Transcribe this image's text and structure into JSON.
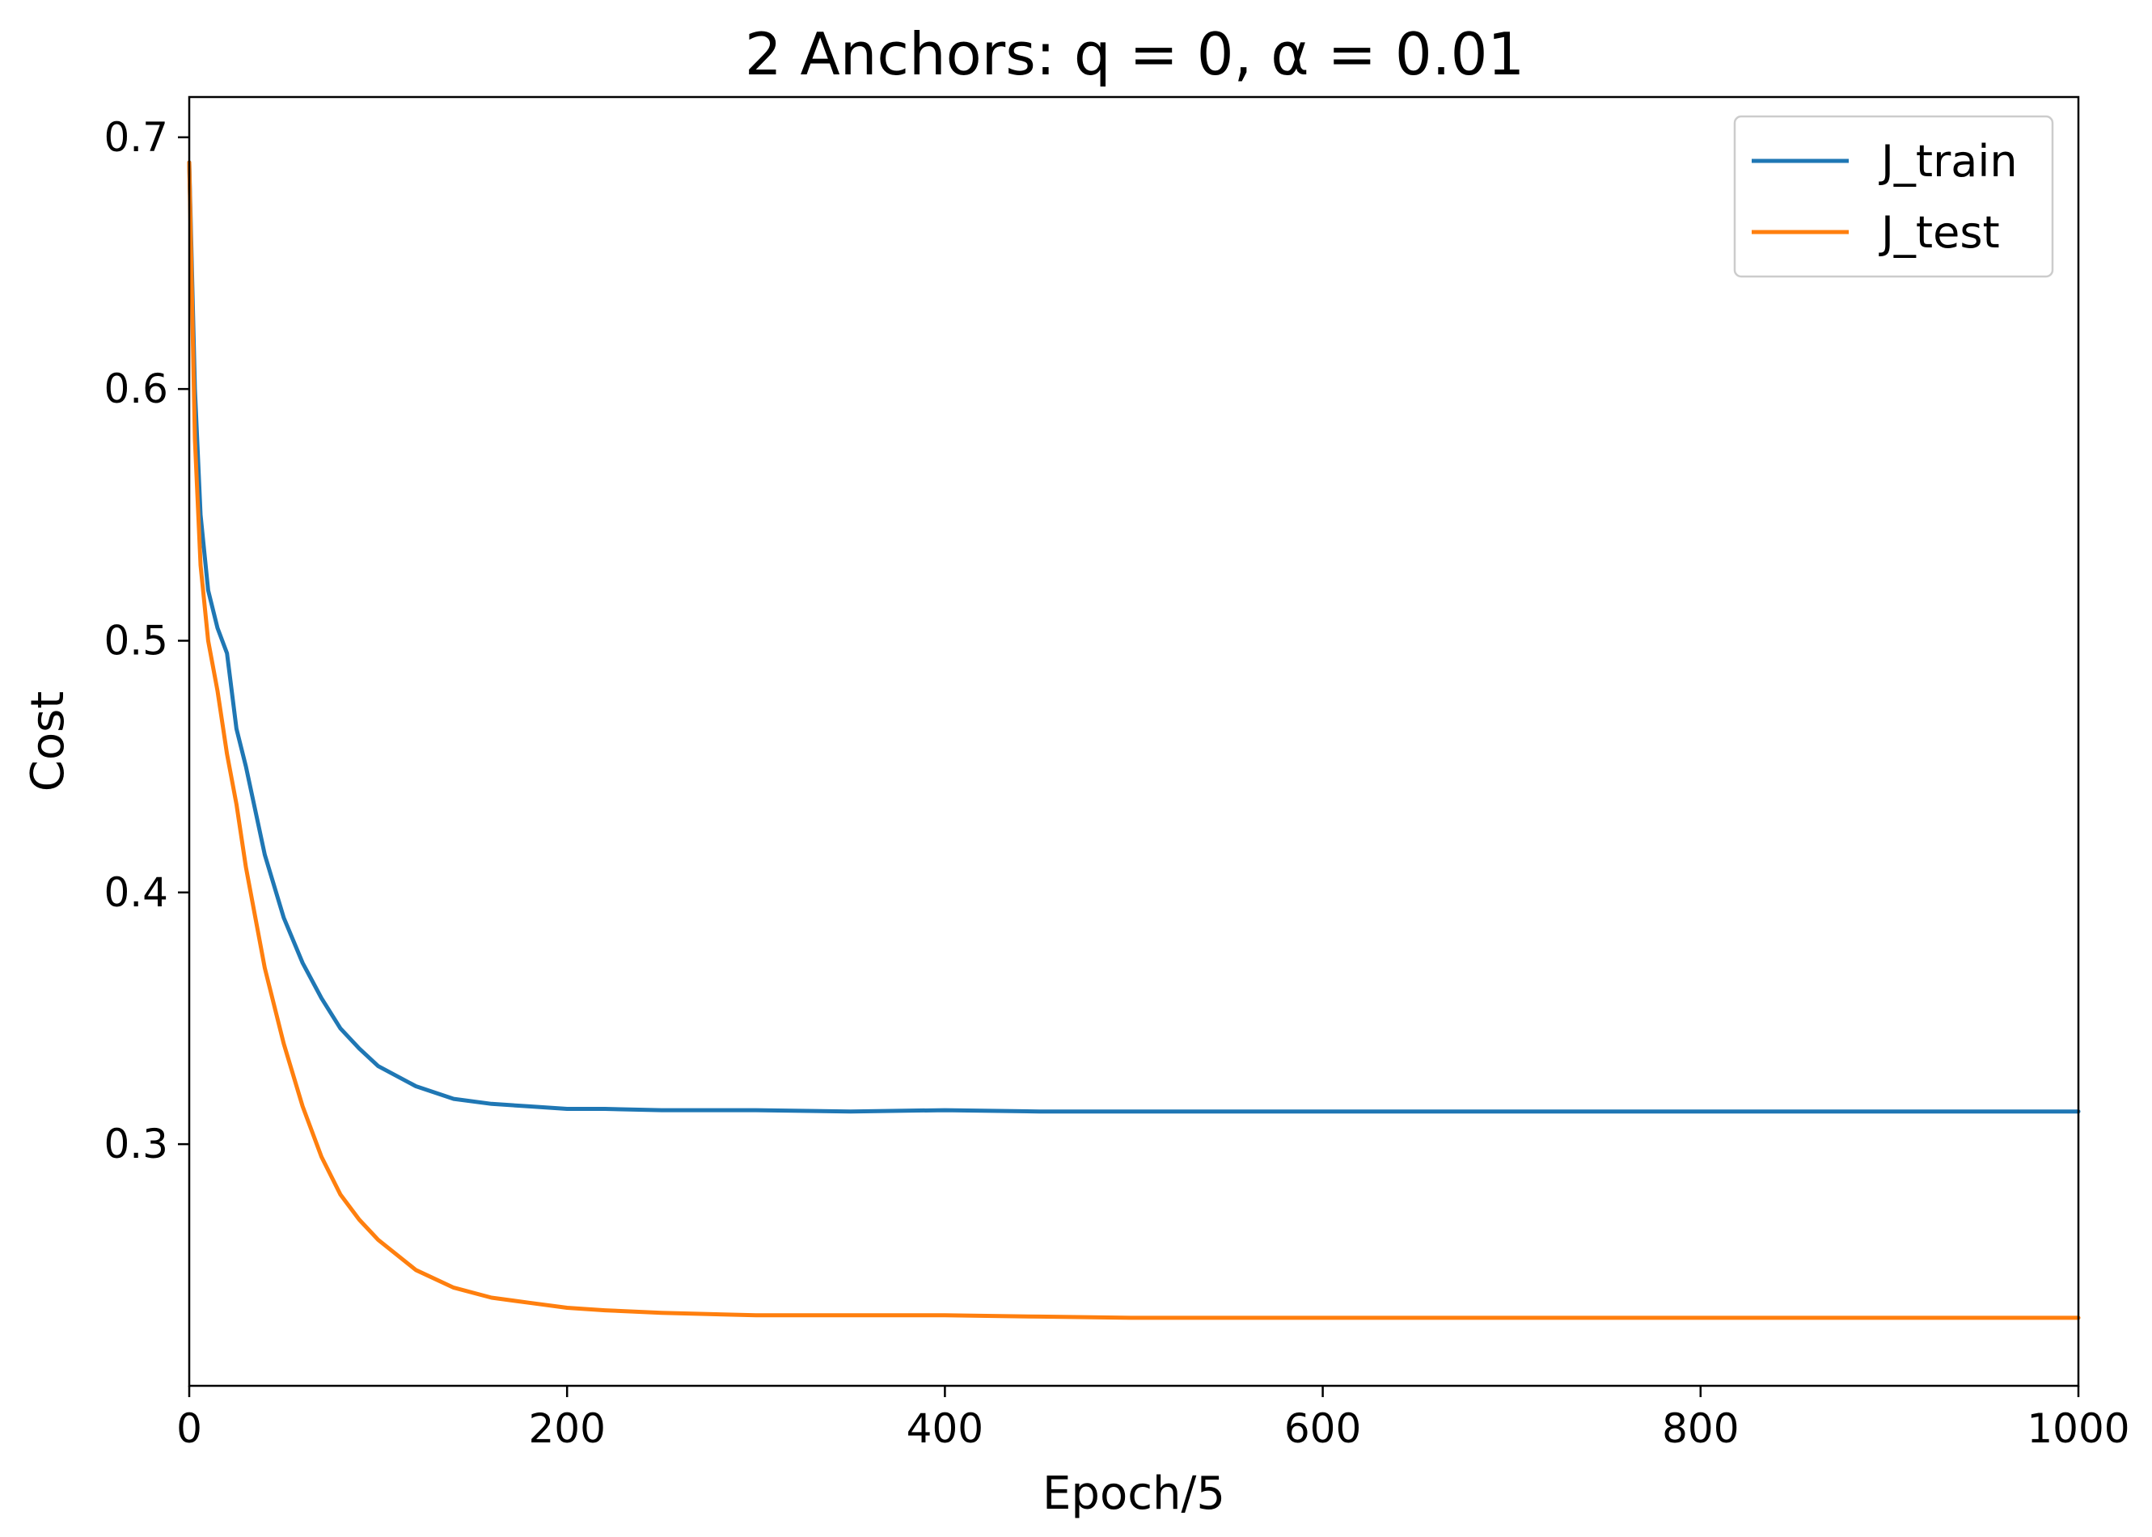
{
  "chart_data": {
    "type": "line",
    "title": "2 Anchors: q = 0, α = 0.01",
    "xlabel": "Epoch/5",
    "ylabel": "Cost",
    "xlim": [
      0,
      1000
    ],
    "ylim": [
      0.204,
      0.716
    ],
    "xticks": [
      0,
      200,
      400,
      600,
      800,
      1000
    ],
    "yticks": [
      0.3,
      0.4,
      0.5,
      0.6,
      0.7
    ],
    "xtick_labels": [
      "0",
      "200",
      "400",
      "600",
      "800",
      "1000"
    ],
    "ytick_labels": [
      "0.3",
      "0.4",
      "0.5",
      "0.6",
      "0.7"
    ],
    "grid": false,
    "legend_position": "upper right",
    "series": [
      {
        "name": "J_train",
        "color": "#1f77b4",
        "x": [
          0,
          3,
          6,
          10,
          15,
          20,
          25,
          30,
          40,
          50,
          60,
          70,
          80,
          90,
          100,
          120,
          140,
          160,
          180,
          200,
          220,
          250,
          300,
          350,
          400,
          450,
          500,
          550,
          600,
          650,
          700,
          750,
          800,
          850,
          900,
          950,
          1000
        ],
        "values": [
          0.69,
          0.6,
          0.55,
          0.52,
          0.505,
          0.495,
          0.465,
          0.45,
          0.415,
          0.39,
          0.372,
          0.358,
          0.346,
          0.338,
          0.331,
          0.323,
          0.318,
          0.316,
          0.315,
          0.314,
          0.314,
          0.3135,
          0.3135,
          0.313,
          0.3135,
          0.313,
          0.313,
          0.313,
          0.313,
          0.313,
          0.313,
          0.313,
          0.313,
          0.313,
          0.313,
          0.313,
          0.313
        ]
      },
      {
        "name": "J_test",
        "color": "#ff7f0e",
        "x": [
          0,
          3,
          6,
          10,
          15,
          20,
          25,
          30,
          40,
          50,
          60,
          70,
          80,
          90,
          100,
          120,
          140,
          160,
          180,
          200,
          220,
          250,
          300,
          350,
          400,
          450,
          500,
          550,
          600,
          650,
          700,
          750,
          800,
          850,
          900,
          950,
          1000
        ],
        "values": [
          0.69,
          0.58,
          0.53,
          0.5,
          0.48,
          0.455,
          0.435,
          0.41,
          0.37,
          0.34,
          0.315,
          0.295,
          0.28,
          0.27,
          0.262,
          0.25,
          0.243,
          0.239,
          0.237,
          0.235,
          0.234,
          0.233,
          0.232,
          0.232,
          0.232,
          0.2315,
          0.231,
          0.231,
          0.231,
          0.231,
          0.231,
          0.231,
          0.231,
          0.231,
          0.231,
          0.231,
          0.231
        ]
      }
    ]
  }
}
